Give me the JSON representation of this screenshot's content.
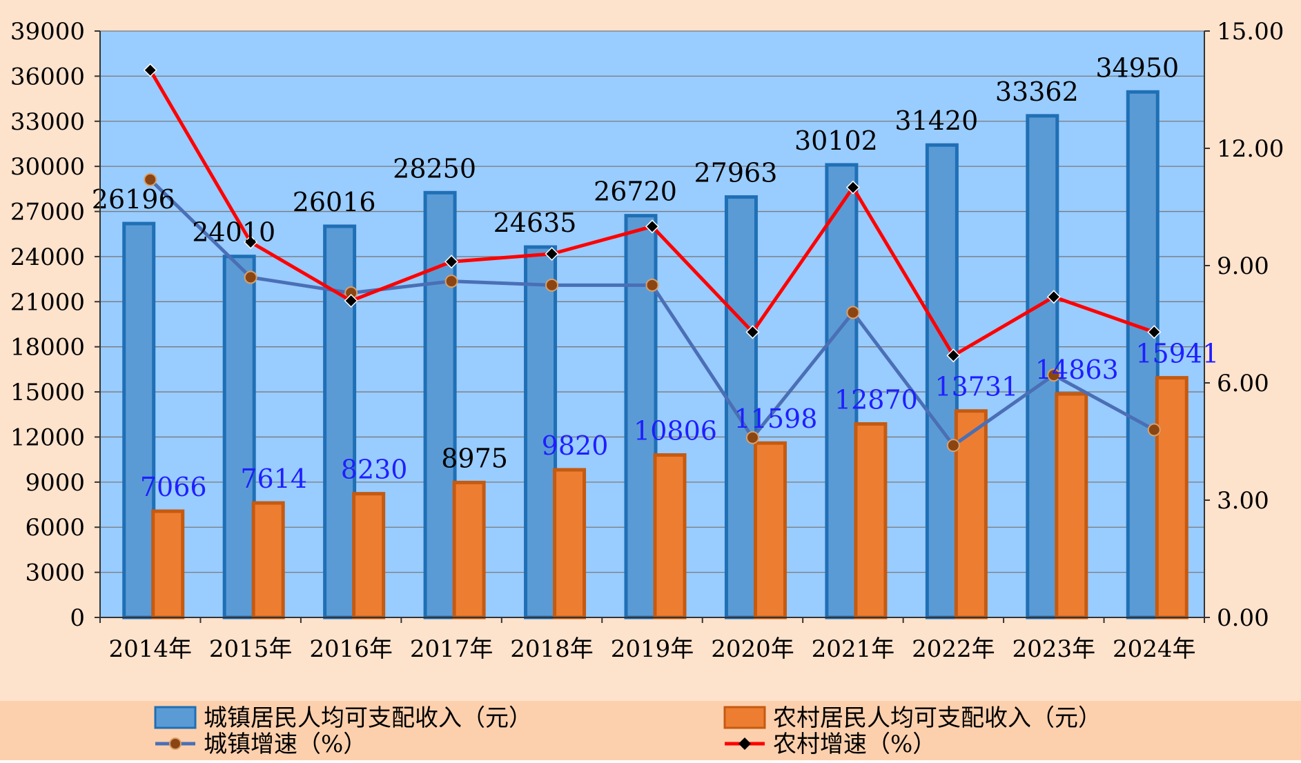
{
  "chart_data": {
    "type": "bar",
    "title": "",
    "categories": [
      "2014年",
      "2015年",
      "2016年",
      "2017年",
      "2018年",
      "2019年",
      "2020年",
      "2021年",
      "2022年",
      "2023年",
      "2024年"
    ],
    "series": [
      {
        "name": "城镇居民人均可支配收入（元）",
        "kind": "bar",
        "axis": "left",
        "color": "#5b9bd5",
        "values": [
          26196,
          24010,
          26016,
          28250,
          24635,
          26720,
          27963,
          30102,
          31420,
          33362,
          34950
        ],
        "value_labels": [
          "26196",
          "24010",
          "26016",
          "28250",
          "24635",
          "26720",
          "27963",
          "30102",
          "31420",
          "33362",
          "34950"
        ],
        "label_color": "#000000"
      },
      {
        "name": "农村居民人均可支配收入（元）",
        "kind": "bar",
        "axis": "left",
        "color": "#ed7d31",
        "values": [
          7066,
          7614,
          8230,
          8975,
          9820,
          10806,
          11598,
          12870,
          13731,
          14863,
          15941
        ],
        "value_labels": [
          "7066",
          "7614",
          "8230",
          "8975",
          "9820",
          "10806",
          "11598",
          "12870",
          "13731",
          "14863",
          "15941"
        ],
        "label_colors": [
          "#1f1fff",
          "#1f1fff",
          "#1f1fff",
          "#000000",
          "#1f1fff",
          "#1f1fff",
          "#1f1fff",
          "#1f1fff",
          "#1f1fff",
          "#1f1fff",
          "#1f1fff"
        ]
      },
      {
        "name": "城镇增速（%）",
        "kind": "line",
        "axis": "right",
        "color": "#4a6fb5",
        "marker": "circle",
        "marker_color": "#8b4513",
        "values": [
          11.2,
          8.7,
          8.3,
          8.6,
          8.5,
          8.5,
          4.6,
          7.8,
          4.4,
          6.2,
          4.8
        ]
      },
      {
        "name": "农村增速（%）",
        "kind": "line",
        "axis": "right",
        "color": "#ff0000",
        "marker": "diamond",
        "marker_color": "#000000",
        "values": [
          14.0,
          9.6,
          8.1,
          9.1,
          9.3,
          10.0,
          7.3,
          11.0,
          6.7,
          8.2,
          7.3
        ]
      }
    ],
    "y_left": {
      "min": 0,
      "max": 39000,
      "ticks": [
        0,
        3000,
        6000,
        9000,
        12000,
        15000,
        18000,
        21000,
        24000,
        27000,
        30000,
        33000,
        36000,
        39000
      ],
      "tick_labels": [
        "0",
        "3000",
        "6000",
        "9000",
        "12000",
        "15000",
        "18000",
        "21000",
        "24000",
        "27000",
        "30000",
        "33000",
        "36000",
        "39000"
      ]
    },
    "y_right": {
      "min": 0,
      "max": 15,
      "ticks": [
        0,
        3,
        6,
        9,
        12,
        15
      ],
      "tick_labels": [
        "0.00",
        "3.00",
        "6.00",
        "9.00",
        "12.00",
        "15.00"
      ]
    },
    "grid": true,
    "legend_position": "bottom",
    "colors": {
      "page_background": "#fde2cc",
      "plot_background": "#99ccff",
      "grid": "#7a7a7a",
      "axis": "#333333"
    }
  }
}
